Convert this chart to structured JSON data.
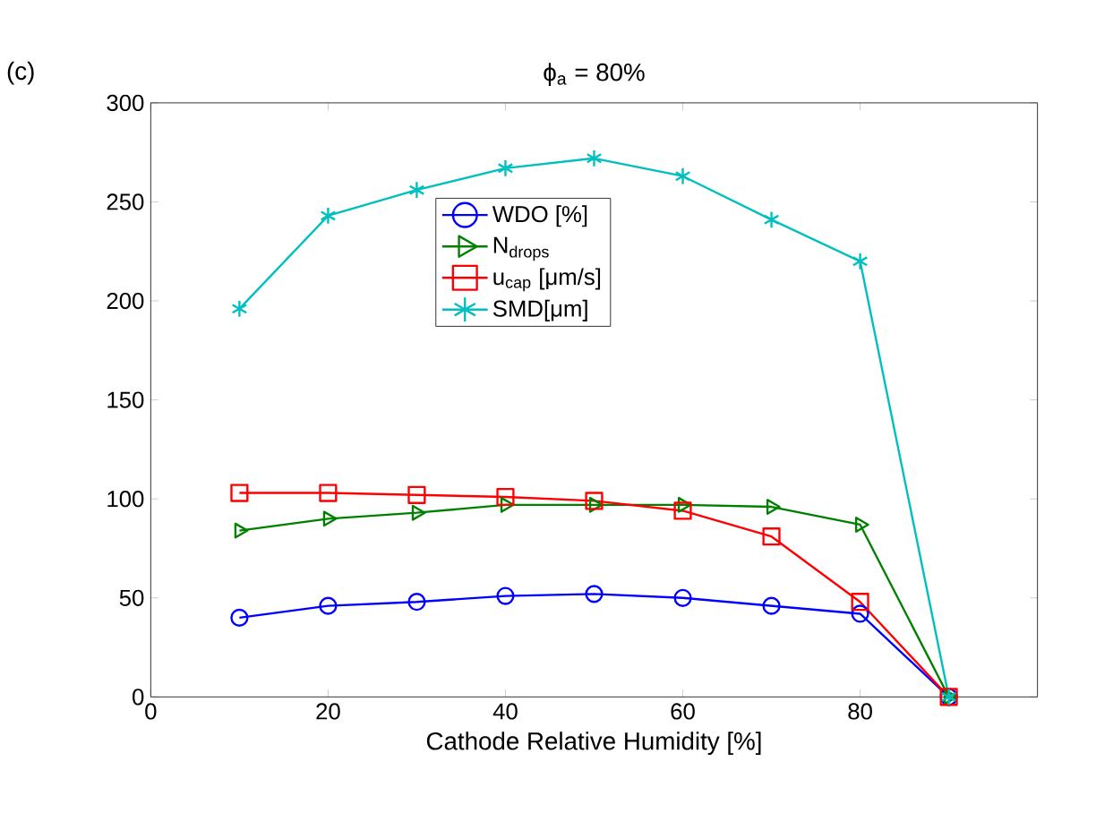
{
  "chart_data": {
    "type": "line",
    "title": "ϕ$_{a}$ = 80%",
    "xlabel": "Cathode Relative Humidity [%]",
    "annotations": [
      "(c)"
    ],
    "x": [
      10,
      20,
      30,
      40,
      50,
      60,
      70,
      80,
      90
    ],
    "xlim": [
      0,
      100
    ],
    "ylim": [
      0,
      300
    ],
    "xticks": [
      0,
      20,
      40,
      60,
      80
    ],
    "yticks": [
      0,
      50,
      100,
      150,
      200,
      250,
      300
    ],
    "grid": false,
    "legend": "top",
    "series": [
      {
        "name": "WDO [%]",
        "color": "#0000ff",
        "marker": "circle",
        "values": [
          40,
          46,
          48,
          51,
          52,
          50,
          46,
          42,
          0
        ]
      },
      {
        "name": "N$_{drops}$",
        "color": "#008000",
        "marker": "triangle",
        "values": [
          84,
          90,
          93,
          97,
          97,
          97,
          96,
          87,
          0
        ]
      },
      {
        "name": "u$_{cap}$ [μm/s]",
        "color": "#ff0000",
        "marker": "square",
        "values": [
          103,
          103,
          102,
          101,
          99,
          94,
          81,
          48,
          0
        ]
      },
      {
        "name": "SMD[μm]",
        "color": "#00bfbf",
        "marker": "cross",
        "values": [
          196,
          243,
          256,
          267,
          272,
          263,
          241,
          220,
          0
        ]
      }
    ]
  }
}
